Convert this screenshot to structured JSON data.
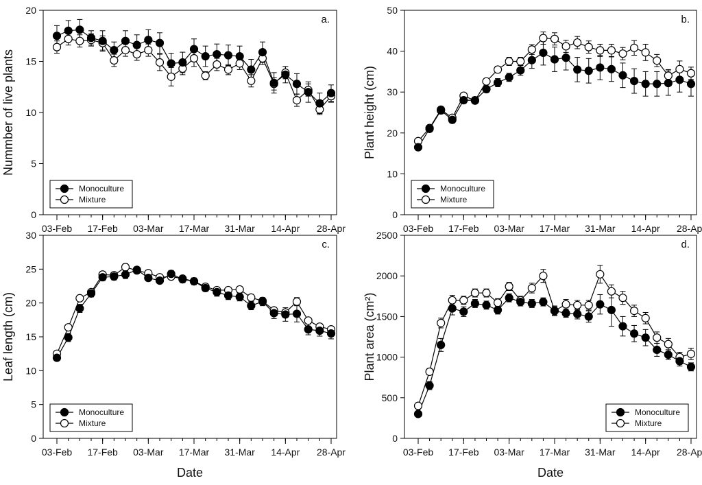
{
  "figure": {
    "xlabel_common": "Date",
    "legend": {
      "mono": "Monoculture",
      "mix": "Mixture"
    }
  },
  "chart_data": [
    {
      "type": "line",
      "panel": "a.",
      "ylabel": "Nummber of live plants",
      "xlabel": "",
      "ylim": [
        0,
        20
      ],
      "yticks": [
        0,
        5,
        10,
        15,
        20
      ],
      "legend_position": "bottom-left",
      "x_tick_labels": [
        "03-Feb",
        "17-Feb",
        "03-Mar",
        "17-Mar",
        "31-Mar",
        "14-Apr",
        "28-Apr"
      ],
      "series": [
        {
          "name": "Monoculture",
          "marker": "filled",
          "values": [
            17.5,
            18.0,
            18.1,
            17.3,
            17.0,
            16.1,
            17.0,
            16.6,
            17.1,
            16.8,
            14.8,
            14.9,
            16.2,
            15.5,
            15.7,
            15.6,
            15.5,
            14.2,
            15.9,
            12.9,
            13.7,
            12.8,
            12.0,
            10.9,
            11.9
          ],
          "errors": [
            1.0,
            1.0,
            1.0,
            0.7,
            1.0,
            0.8,
            1.0,
            1.0,
            1.0,
            1.0,
            1.0,
            1.0,
            1.0,
            1.0,
            1.0,
            1.0,
            1.0,
            1.0,
            1.0,
            1.0,
            0.8,
            1.0,
            1.0,
            1.0,
            0.8
          ]
        },
        {
          "name": "Mixture",
          "marker": "open",
          "values": [
            16.4,
            17.2,
            17.0,
            17.1,
            16.8,
            15.1,
            16.1,
            15.7,
            16.1,
            14.9,
            13.5,
            14.3,
            15.3,
            13.6,
            14.7,
            14.2,
            14.8,
            13.1,
            15.3,
            12.8,
            13.9,
            11.2,
            12.2,
            10.3,
            11.6
          ],
          "errors": [
            0.6,
            0.6,
            0.6,
            0.6,
            0.7,
            0.6,
            0.6,
            0.6,
            0.6,
            0.8,
            0.9,
            0.6,
            0.8,
            0.4,
            0.6,
            0.5,
            0.6,
            0.6,
            0.6,
            0.6,
            0.6,
            0.6,
            0.6,
            0.5,
            0.6
          ]
        }
      ]
    },
    {
      "type": "line",
      "panel": "b.",
      "ylabel": "Plant height (cm)",
      "xlabel": "",
      "ylim": [
        0,
        50
      ],
      "yticks": [
        0,
        10,
        20,
        30,
        40,
        50
      ],
      "legend_position": "bottom-left",
      "x_tick_labels": [
        "03-Feb",
        "17-Feb",
        "03-Mar",
        "17-Mar",
        "31-Mar",
        "14-Apr",
        "28-Apr"
      ],
      "series": [
        {
          "name": "Monoculture",
          "marker": "filled",
          "values": [
            16.5,
            21.0,
            25.5,
            23.2,
            28.0,
            28.0,
            30.7,
            32.3,
            33.6,
            35.3,
            37.8,
            39.6,
            38.0,
            38.4,
            35.5,
            35.2,
            36.0,
            35.6,
            34.1,
            32.7,
            32.0,
            32.0,
            32.2,
            33.0,
            32.0
          ],
          "errors": [
            0.7,
            0.7,
            0.8,
            0.8,
            0.8,
            0.8,
            0.8,
            1.0,
            1.0,
            1.2,
            2.0,
            3.0,
            3.0,
            3.0,
            3.0,
            3.0,
            3.0,
            3.0,
            3.0,
            3.0,
            3.0,
            3.0,
            3.0,
            3.0,
            3.0
          ]
        },
        {
          "name": "Mixture",
          "marker": "open",
          "values": [
            18.0,
            21.2,
            25.7,
            23.7,
            29.1,
            27.9,
            32.6,
            35.5,
            37.5,
            37.5,
            40.4,
            43.2,
            43.0,
            41.2,
            42.1,
            41.0,
            40.2,
            40.2,
            39.4,
            40.8,
            39.7,
            37.7,
            34.0,
            35.6,
            34.6
          ],
          "errors": [
            0.5,
            0.5,
            0.5,
            0.5,
            0.5,
            0.6,
            0.6,
            0.8,
            1.0,
            1.0,
            1.2,
            1.5,
            1.5,
            1.5,
            1.5,
            1.5,
            1.5,
            1.5,
            1.5,
            1.8,
            2.0,
            1.5,
            1.5,
            2.0,
            1.5
          ]
        }
      ]
    },
    {
      "type": "line",
      "panel": "c.",
      "ylabel": "Leaf length (cm)",
      "xlabel": "Date",
      "ylim": [
        0,
        30
      ],
      "yticks": [
        0,
        5,
        10,
        15,
        20,
        25,
        30
      ],
      "legend_position": "bottom-left",
      "x_tick_labels": [
        "03-Feb",
        "17-Feb",
        "03-Mar",
        "17-Mar",
        "31-Mar",
        "14-Apr",
        "28-Apr"
      ],
      "series": [
        {
          "name": "Monoculture",
          "marker": "filled",
          "values": [
            11.9,
            14.9,
            19.2,
            21.4,
            23.8,
            23.9,
            24.2,
            24.9,
            23.7,
            23.3,
            24.3,
            23.5,
            23.2,
            22.2,
            21.6,
            21.1,
            20.9,
            19.6,
            20.2,
            18.5,
            18.3,
            18.4,
            16.1,
            15.9,
            15.5
          ],
          "errors": [
            0.3,
            0.6,
            0.6,
            0.5,
            0.5,
            0.5,
            0.6,
            0.4,
            0.4,
            0.4,
            0.5,
            0.5,
            0.5,
            0.5,
            0.6,
            0.6,
            0.6,
            0.6,
            0.6,
            0.8,
            1.0,
            1.2,
            0.8,
            0.8,
            0.8
          ]
        },
        {
          "name": "Mixture",
          "marker": "open",
          "values": [
            12.5,
            16.4,
            20.7,
            21.6,
            24.2,
            24.1,
            25.3,
            24.8,
            24.4,
            23.8,
            23.9,
            23.6,
            23.2,
            22.4,
            21.9,
            21.9,
            22.0,
            20.8,
            20.3,
            18.9,
            18.6,
            20.2,
            17.4,
            16.5,
            16.1
          ],
          "errors": [
            0.3,
            0.4,
            0.4,
            0.4,
            0.4,
            0.4,
            0.5,
            0.4,
            0.4,
            0.4,
            0.4,
            0.4,
            0.4,
            0.4,
            0.4,
            0.4,
            0.4,
            0.4,
            0.4,
            0.4,
            0.4,
            0.6,
            0.4,
            0.4,
            0.4
          ]
        }
      ]
    },
    {
      "type": "line",
      "panel": "d.",
      "ylabel": "Plant area (cm²)",
      "xlabel": "Date",
      "ylim": [
        0,
        2500
      ],
      "yticks": [
        0,
        500,
        1000,
        1500,
        2000,
        2500
      ],
      "legend_position": "bottom-right",
      "x_tick_labels": [
        "03-Feb",
        "17-Feb",
        "03-Mar",
        "17-Mar",
        "31-Mar",
        "14-Apr",
        "28-Apr"
      ],
      "series": [
        {
          "name": "Monoculture",
          "marker": "filled",
          "values": [
            300,
            650,
            1150,
            1600,
            1560,
            1660,
            1640,
            1580,
            1730,
            1680,
            1660,
            1680,
            1570,
            1540,
            1530,
            1500,
            1650,
            1580,
            1380,
            1290,
            1240,
            1090,
            1030,
            950,
            880
          ],
          "errors": [
            30,
            50,
            80,
            80,
            60,
            50,
            50,
            50,
            50,
            50,
            50,
            50,
            50,
            50,
            60,
            70,
            120,
            200,
            120,
            100,
            100,
            80,
            60,
            60,
            50
          ]
        },
        {
          "name": "Mixture",
          "marker": "open",
          "values": [
            400,
            820,
            1420,
            1700,
            1700,
            1790,
            1790,
            1670,
            1870,
            1700,
            1850,
            2000,
            1570,
            1650,
            1640,
            1640,
            2020,
            1810,
            1730,
            1570,
            1480,
            1240,
            1160,
            1000,
            1040
          ],
          "errors": [
            30,
            40,
            60,
            60,
            50,
            50,
            50,
            50,
            50,
            50,
            60,
            80,
            60,
            60,
            60,
            60,
            110,
            80,
            80,
            70,
            70,
            70,
            70,
            60,
            70
          ]
        }
      ]
    }
  ]
}
